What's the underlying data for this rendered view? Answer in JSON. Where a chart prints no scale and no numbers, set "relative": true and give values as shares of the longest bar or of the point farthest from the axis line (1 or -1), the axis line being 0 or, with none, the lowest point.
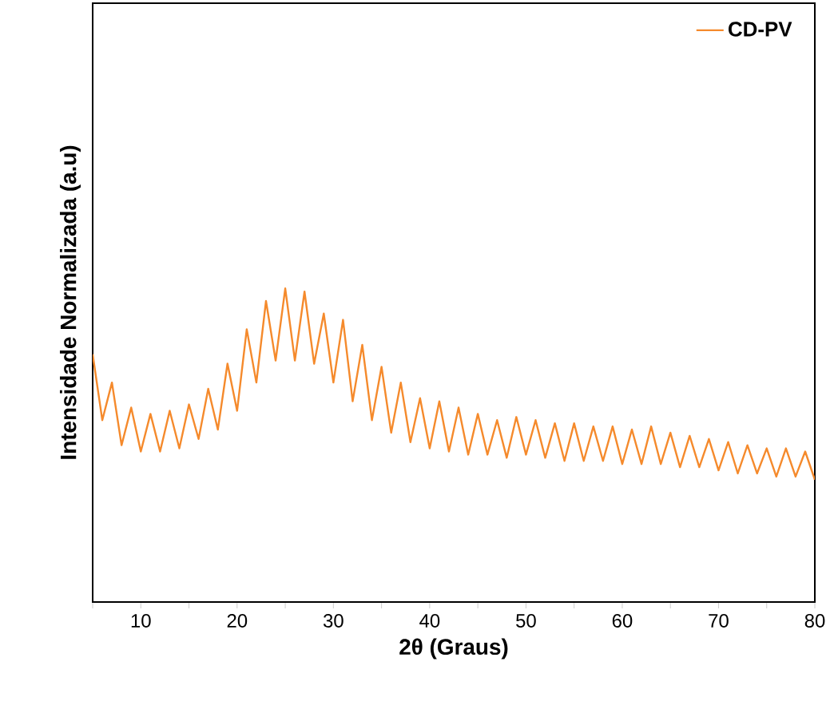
{
  "chart_data": {
    "type": "line",
    "relative": true,
    "xlabel": "2θ (Graus)",
    "ylabel": "Intensidade Normalizada (a.u)",
    "xlim": [
      5,
      80
    ],
    "xticks": [
      {
        "value": 5,
        "label": null
      },
      10,
      {
        "value": 15,
        "label": null
      },
      20,
      {
        "value": 25,
        "label": null
      },
      30,
      {
        "value": 35,
        "label": null
      },
      40,
      {
        "value": 45,
        "label": null
      },
      50,
      {
        "value": 55,
        "label": null
      },
      60,
      {
        "value": 65,
        "label": null
      },
      70,
      {
        "value": 75,
        "label": null
      },
      80
    ],
    "legend": "top right",
    "grid": false,
    "marker": "none",
    "line_style": "solid",
    "series": [
      {
        "name": "CD-PV",
        "color": "#f58a2c",
        "x": [
          5,
          6,
          7,
          8,
          9,
          10,
          11,
          12,
          13,
          14,
          15,
          16,
          17,
          18,
          19,
          20,
          21,
          22,
          23,
          24,
          25,
          26,
          27,
          28,
          29,
          30,
          31,
          32,
          33,
          34,
          35,
          36,
          37,
          38,
          39,
          40,
          41,
          42,
          43,
          44,
          45,
          46,
          47,
          48,
          49,
          50,
          51,
          52,
          53,
          54,
          55,
          56,
          57,
          58,
          59,
          60,
          61,
          62,
          63,
          64,
          65,
          66,
          67,
          68,
          69,
          70,
          71,
          72,
          73,
          74,
          75,
          76,
          77,
          78,
          79,
          80
        ],
        "values": [
          0.79,
          0.58,
          0.7,
          0.5,
          0.62,
          0.48,
          0.6,
          0.48,
          0.61,
          0.49,
          0.63,
          0.52,
          0.68,
          0.55,
          0.76,
          0.61,
          0.87,
          0.7,
          0.96,
          0.77,
          1.0,
          0.77,
          0.99,
          0.76,
          0.92,
          0.7,
          0.9,
          0.64,
          0.82,
          0.58,
          0.75,
          0.54,
          0.7,
          0.51,
          0.65,
          0.49,
          0.64,
          0.48,
          0.62,
          0.47,
          0.6,
          0.47,
          0.58,
          0.46,
          0.59,
          0.47,
          0.58,
          0.46,
          0.57,
          0.45,
          0.57,
          0.45,
          0.56,
          0.45,
          0.56,
          0.44,
          0.55,
          0.44,
          0.56,
          0.44,
          0.54,
          0.43,
          0.53,
          0.43,
          0.52,
          0.42,
          0.51,
          0.41,
          0.5,
          0.41,
          0.49,
          0.4,
          0.49,
          0.4,
          0.48,
          0.39
        ]
      }
    ]
  }
}
